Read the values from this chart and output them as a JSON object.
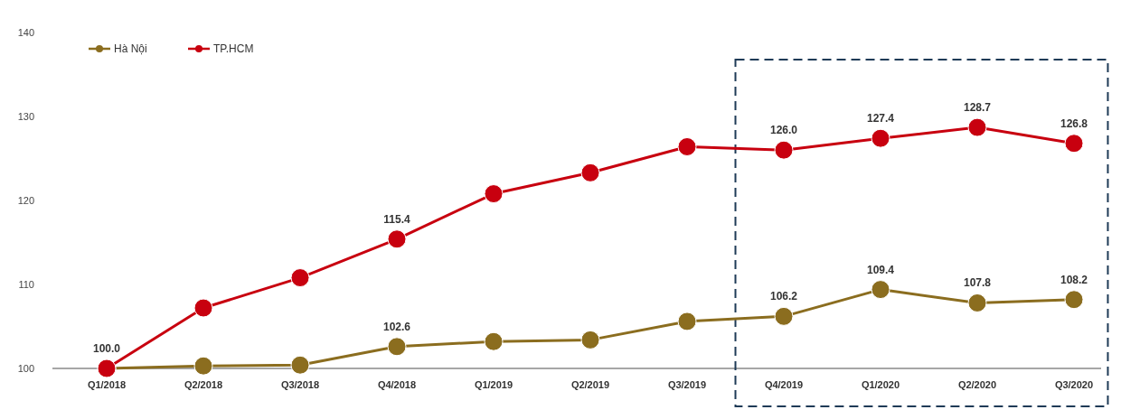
{
  "chart_data": {
    "type": "line",
    "categories": [
      "Q1/2018",
      "Q2/2018",
      "Q3/2018",
      "Q4/2018",
      "Q1/2019",
      "Q2/2019",
      "Q3/2019",
      "Q4/2019",
      "Q1/2020",
      "Q2/2020",
      "Q3/2020"
    ],
    "series": [
      {
        "name": "Hà Nội",
        "color": "#8b6d1f",
        "values": [
          100.0,
          100.3,
          100.4,
          102.6,
          103.2,
          103.4,
          105.6,
          106.2,
          109.4,
          107.8,
          108.2
        ],
        "value_labels": [
          "100.0",
          null,
          null,
          "102.6",
          null,
          null,
          null,
          "106.2",
          "109.4",
          "107.8",
          "108.2"
        ]
      },
      {
        "name": "TP.HCM",
        "color": "#c8000f",
        "values": [
          100.0,
          107.2,
          110.8,
          115.4,
          120.8,
          123.3,
          126.4,
          126.0,
          127.4,
          128.7,
          126.8
        ],
        "value_labels": [
          null,
          null,
          null,
          "115.4",
          null,
          null,
          null,
          "126.0",
          "127.4",
          "128.7",
          "126.8"
        ]
      }
    ],
    "ylim": [
      100,
      140
    ],
    "yticks": [
      100,
      110,
      120,
      130,
      140
    ],
    "grid": false,
    "legend": "top left",
    "marker": "circle",
    "line_style": "solid"
  }
}
